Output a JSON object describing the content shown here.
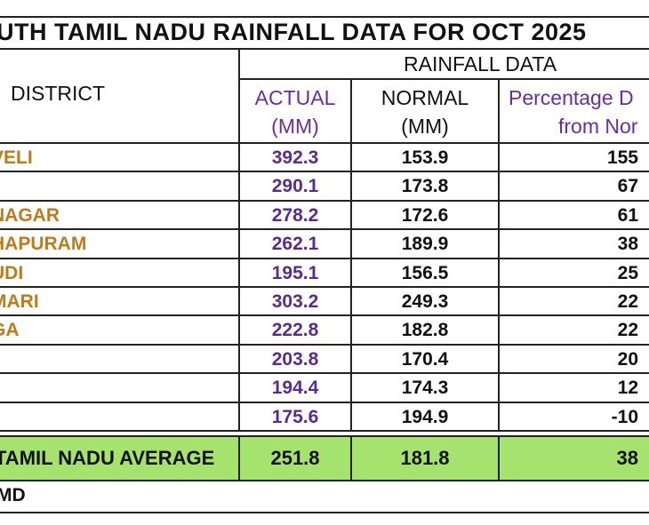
{
  "title": "UTH TAMIL NADU RAINFALL DATA FOR OCT 2025",
  "headers": {
    "district": "DISTRICT",
    "rainfall_data": "RAINFALL DATA",
    "actual_line1": "ACTUAL",
    "actual_line2": "(MM)",
    "normal_line1": "NORMAL",
    "normal_line2": "(MM)",
    "pct_line1": "Percentage D",
    "pct_line2": "from Nor"
  },
  "rows": [
    {
      "district": "VELI",
      "actual": "392.3",
      "normal": "153.9",
      "pct": "155"
    },
    {
      "district": "",
      "actual": "290.1",
      "normal": "173.8",
      "pct": "67"
    },
    {
      "district": "NAGAR",
      "actual": "278.2",
      "normal": "172.6",
      "pct": "61"
    },
    {
      "district": "HAPURAM",
      "actual": "262.1",
      "normal": "189.9",
      "pct": "38"
    },
    {
      "district": "UDI",
      "actual": "195.1",
      "normal": "156.5",
      "pct": "25"
    },
    {
      "district": "MARI",
      "actual": "303.2",
      "normal": "249.3",
      "pct": "22"
    },
    {
      "district": "GA",
      "actual": "222.8",
      "normal": "182.8",
      "pct": "22"
    },
    {
      "district": "",
      "actual": "203.8",
      "normal": "170.4",
      "pct": "20"
    },
    {
      "district": "",
      "actual": "194.4",
      "normal": "174.3",
      "pct": "12"
    },
    {
      "district": "",
      "actual": "175.6",
      "normal": "194.9",
      "pct": "-10"
    }
  ],
  "average": {
    "label": "TAMIL NADU AVERAGE",
    "actual": "251.8",
    "normal": "181.8",
    "pct": "38"
  },
  "source": "MD",
  "colors": {
    "district_text": "#c07a1a",
    "actual_text": "#5a2a8e",
    "average_bg": "#a6e26e"
  }
}
